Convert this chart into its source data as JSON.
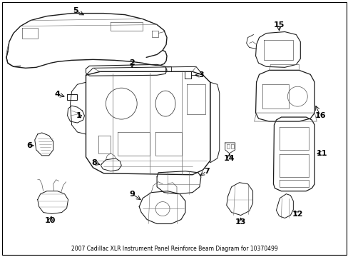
{
  "title": "2007 Cadillac XLR Instrument Panel Reinforce Beam Diagram for 10370499",
  "background_color": "#ffffff",
  "fig_width": 4.89,
  "fig_height": 3.6,
  "dpi": 100,
  "caption": "2007 Cadillac XLR Instrument Panel Reinforce Beam Diagram for 10370499"
}
